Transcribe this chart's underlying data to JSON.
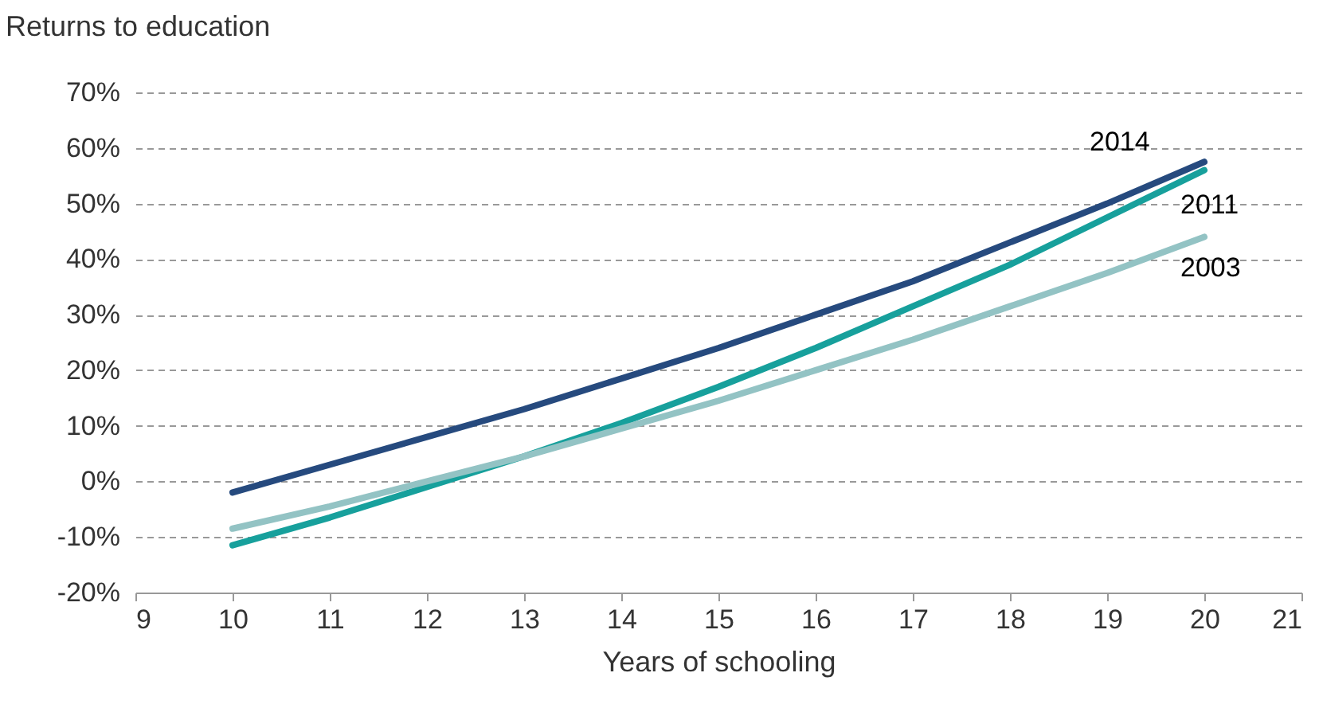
{
  "chart_data": {
    "type": "line",
    "ylabel": "Returns to education",
    "xlabel": "Years of schooling",
    "x": [
      10,
      11,
      12,
      13,
      14,
      15,
      16,
      17,
      18,
      19,
      20
    ],
    "series": [
      {
        "name": "2014",
        "color": "#264a7e",
        "values": [
          -2,
          3,
          8,
          13,
          18.5,
          24,
          30,
          36,
          43,
          50,
          57.5
        ]
      },
      {
        "name": "2011",
        "color": "#17a09c",
        "values": [
          -11.5,
          -6.5,
          -1,
          4.5,
          10.5,
          17,
          24,
          31.5,
          39,
          47.5,
          56
        ]
      },
      {
        "name": "2003",
        "color": "#93c3c4",
        "values": [
          -8.5,
          -4.5,
          0,
          4.5,
          9.5,
          14.5,
          20,
          25.5,
          31.5,
          37.5,
          44
        ]
      }
    ],
    "xlim": [
      9,
      21
    ],
    "xticks": [
      9,
      10,
      11,
      12,
      13,
      14,
      15,
      16,
      17,
      18,
      19,
      20,
      21
    ],
    "ylim": [
      -20,
      70
    ],
    "yticks": [
      {
        "value": -20,
        "label": "-20%"
      },
      {
        "value": -10,
        "label": "-10%"
      },
      {
        "value": 0,
        "label": "0%"
      },
      {
        "value": 10,
        "label": "10%"
      },
      {
        "value": 20,
        "label": "20%"
      },
      {
        "value": 30,
        "label": "30%"
      },
      {
        "value": 40,
        "label": "40%"
      },
      {
        "value": 50,
        "label": "50%"
      },
      {
        "value": 60,
        "label": "60%"
      },
      {
        "value": 70,
        "label": "70%"
      }
    ],
    "grid": "y",
    "legend": false
  }
}
